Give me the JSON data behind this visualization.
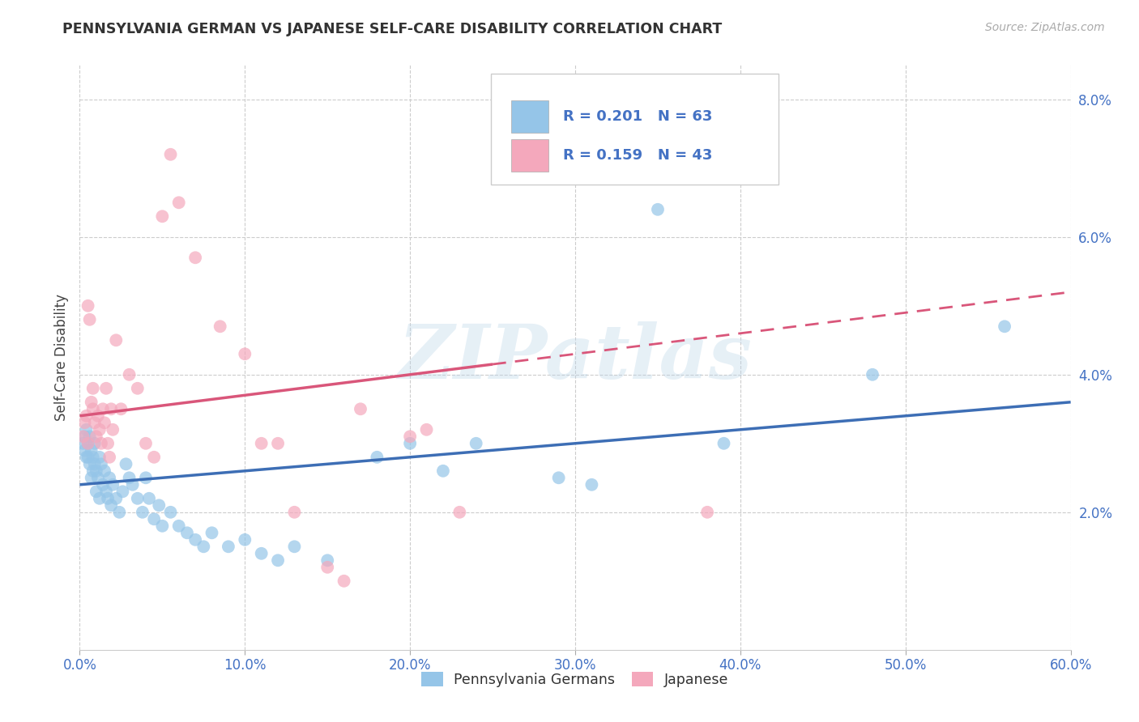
{
  "title": "PENNSYLVANIA GERMAN VS JAPANESE SELF-CARE DISABILITY CORRELATION CHART",
  "source": "Source: ZipAtlas.com",
  "ylabel": "Self-Care Disability",
  "watermark": "ZIPatlas",
  "legend_label1": "Pennsylvania Germans",
  "legend_label2": "Japanese",
  "r1": 0.201,
  "n1": 63,
  "r2": 0.159,
  "n2": 43,
  "xlim": [
    0.0,
    0.6
  ],
  "ylim": [
    0.0,
    0.085
  ],
  "xticks": [
    0.0,
    0.1,
    0.2,
    0.3,
    0.4,
    0.5,
    0.6
  ],
  "yticks": [
    0.02,
    0.04,
    0.06,
    0.08
  ],
  "color_blue": "#95c5e8",
  "color_pink": "#f4a8bc",
  "line_blue": "#3d6eb5",
  "line_pink": "#d9567a",
  "bg_color": "#ffffff",
  "blue_line": [
    0.0,
    0.024,
    0.6,
    0.036
  ],
  "pink_line": [
    0.0,
    0.034,
    0.6,
    0.052
  ],
  "pink_line_solid_end": 0.25,
  "blue_scatter": [
    [
      0.002,
      0.03
    ],
    [
      0.003,
      0.031
    ],
    [
      0.003,
      0.029
    ],
    [
      0.004,
      0.028
    ],
    [
      0.004,
      0.032
    ],
    [
      0.005,
      0.03
    ],
    [
      0.005,
      0.028
    ],
    [
      0.006,
      0.031
    ],
    [
      0.006,
      0.027
    ],
    [
      0.007,
      0.029
    ],
    [
      0.007,
      0.025
    ],
    [
      0.008,
      0.028
    ],
    [
      0.008,
      0.026
    ],
    [
      0.009,
      0.03
    ],
    [
      0.009,
      0.027
    ],
    [
      0.01,
      0.026
    ],
    [
      0.01,
      0.023
    ],
    [
      0.011,
      0.025
    ],
    [
      0.012,
      0.028
    ],
    [
      0.012,
      0.022
    ],
    [
      0.013,
      0.027
    ],
    [
      0.014,
      0.024
    ],
    [
      0.015,
      0.026
    ],
    [
      0.016,
      0.023
    ],
    [
      0.017,
      0.022
    ],
    [
      0.018,
      0.025
    ],
    [
      0.019,
      0.021
    ],
    [
      0.02,
      0.024
    ],
    [
      0.022,
      0.022
    ],
    [
      0.024,
      0.02
    ],
    [
      0.026,
      0.023
    ],
    [
      0.028,
      0.027
    ],
    [
      0.03,
      0.025
    ],
    [
      0.032,
      0.024
    ],
    [
      0.035,
      0.022
    ],
    [
      0.038,
      0.02
    ],
    [
      0.04,
      0.025
    ],
    [
      0.042,
      0.022
    ],
    [
      0.045,
      0.019
    ],
    [
      0.048,
      0.021
    ],
    [
      0.05,
      0.018
    ],
    [
      0.055,
      0.02
    ],
    [
      0.06,
      0.018
    ],
    [
      0.065,
      0.017
    ],
    [
      0.07,
      0.016
    ],
    [
      0.075,
      0.015
    ],
    [
      0.08,
      0.017
    ],
    [
      0.09,
      0.015
    ],
    [
      0.1,
      0.016
    ],
    [
      0.11,
      0.014
    ],
    [
      0.12,
      0.013
    ],
    [
      0.13,
      0.015
    ],
    [
      0.15,
      0.013
    ],
    [
      0.18,
      0.028
    ],
    [
      0.2,
      0.03
    ],
    [
      0.22,
      0.026
    ],
    [
      0.24,
      0.03
    ],
    [
      0.29,
      0.025
    ],
    [
      0.31,
      0.024
    ],
    [
      0.35,
      0.064
    ],
    [
      0.39,
      0.03
    ],
    [
      0.48,
      0.04
    ],
    [
      0.56,
      0.047
    ]
  ],
  "pink_scatter": [
    [
      0.002,
      0.031
    ],
    [
      0.003,
      0.033
    ],
    [
      0.004,
      0.034
    ],
    [
      0.005,
      0.03
    ],
    [
      0.005,
      0.05
    ],
    [
      0.006,
      0.048
    ],
    [
      0.007,
      0.036
    ],
    [
      0.008,
      0.038
    ],
    [
      0.008,
      0.035
    ],
    [
      0.009,
      0.033
    ],
    [
      0.01,
      0.031
    ],
    [
      0.011,
      0.034
    ],
    [
      0.012,
      0.032
    ],
    [
      0.013,
      0.03
    ],
    [
      0.014,
      0.035
    ],
    [
      0.015,
      0.033
    ],
    [
      0.016,
      0.038
    ],
    [
      0.017,
      0.03
    ],
    [
      0.018,
      0.028
    ],
    [
      0.019,
      0.035
    ],
    [
      0.02,
      0.032
    ],
    [
      0.022,
      0.045
    ],
    [
      0.025,
      0.035
    ],
    [
      0.03,
      0.04
    ],
    [
      0.035,
      0.038
    ],
    [
      0.04,
      0.03
    ],
    [
      0.045,
      0.028
    ],
    [
      0.05,
      0.063
    ],
    [
      0.055,
      0.072
    ],
    [
      0.06,
      0.065
    ],
    [
      0.07,
      0.057
    ],
    [
      0.085,
      0.047
    ],
    [
      0.1,
      0.043
    ],
    [
      0.11,
      0.03
    ],
    [
      0.12,
      0.03
    ],
    [
      0.13,
      0.02
    ],
    [
      0.15,
      0.012
    ],
    [
      0.16,
      0.01
    ],
    [
      0.17,
      0.035
    ],
    [
      0.2,
      0.031
    ],
    [
      0.21,
      0.032
    ],
    [
      0.23,
      0.02
    ],
    [
      0.38,
      0.02
    ]
  ]
}
